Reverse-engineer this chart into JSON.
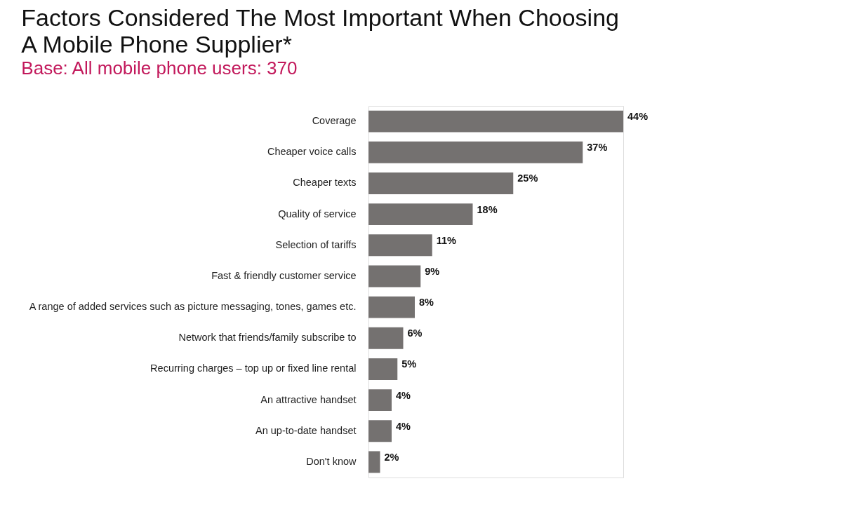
{
  "chart_data": {
    "type": "bar",
    "orientation": "horizontal",
    "title": "Factors Considered The Most Important When Choosing A Mobile Phone Supplier*",
    "subtitle": "Base:  All mobile phone users:  370",
    "categories": [
      "Coverage",
      "Cheaper voice calls",
      "Cheaper texts",
      "Quality of service",
      "Selection of tariffs",
      "Fast & friendly customer service",
      "A range of added services such as picture messaging, tones, games etc.",
      "Network that friends/family subscribe to",
      "Recurring charges – top up or fixed line rental",
      "An attractive handset",
      "An up-to-date handset",
      "Don't know"
    ],
    "values": [
      44,
      37,
      25,
      18,
      11,
      9,
      8,
      6,
      5,
      4,
      4,
      2
    ],
    "value_labels": [
      "44%",
      "37%",
      "25%",
      "18%",
      "11%",
      "9%",
      "8%",
      "6%",
      "5%",
      "4%",
      "4%",
      "2%"
    ],
    "color": "#747170"
  }
}
